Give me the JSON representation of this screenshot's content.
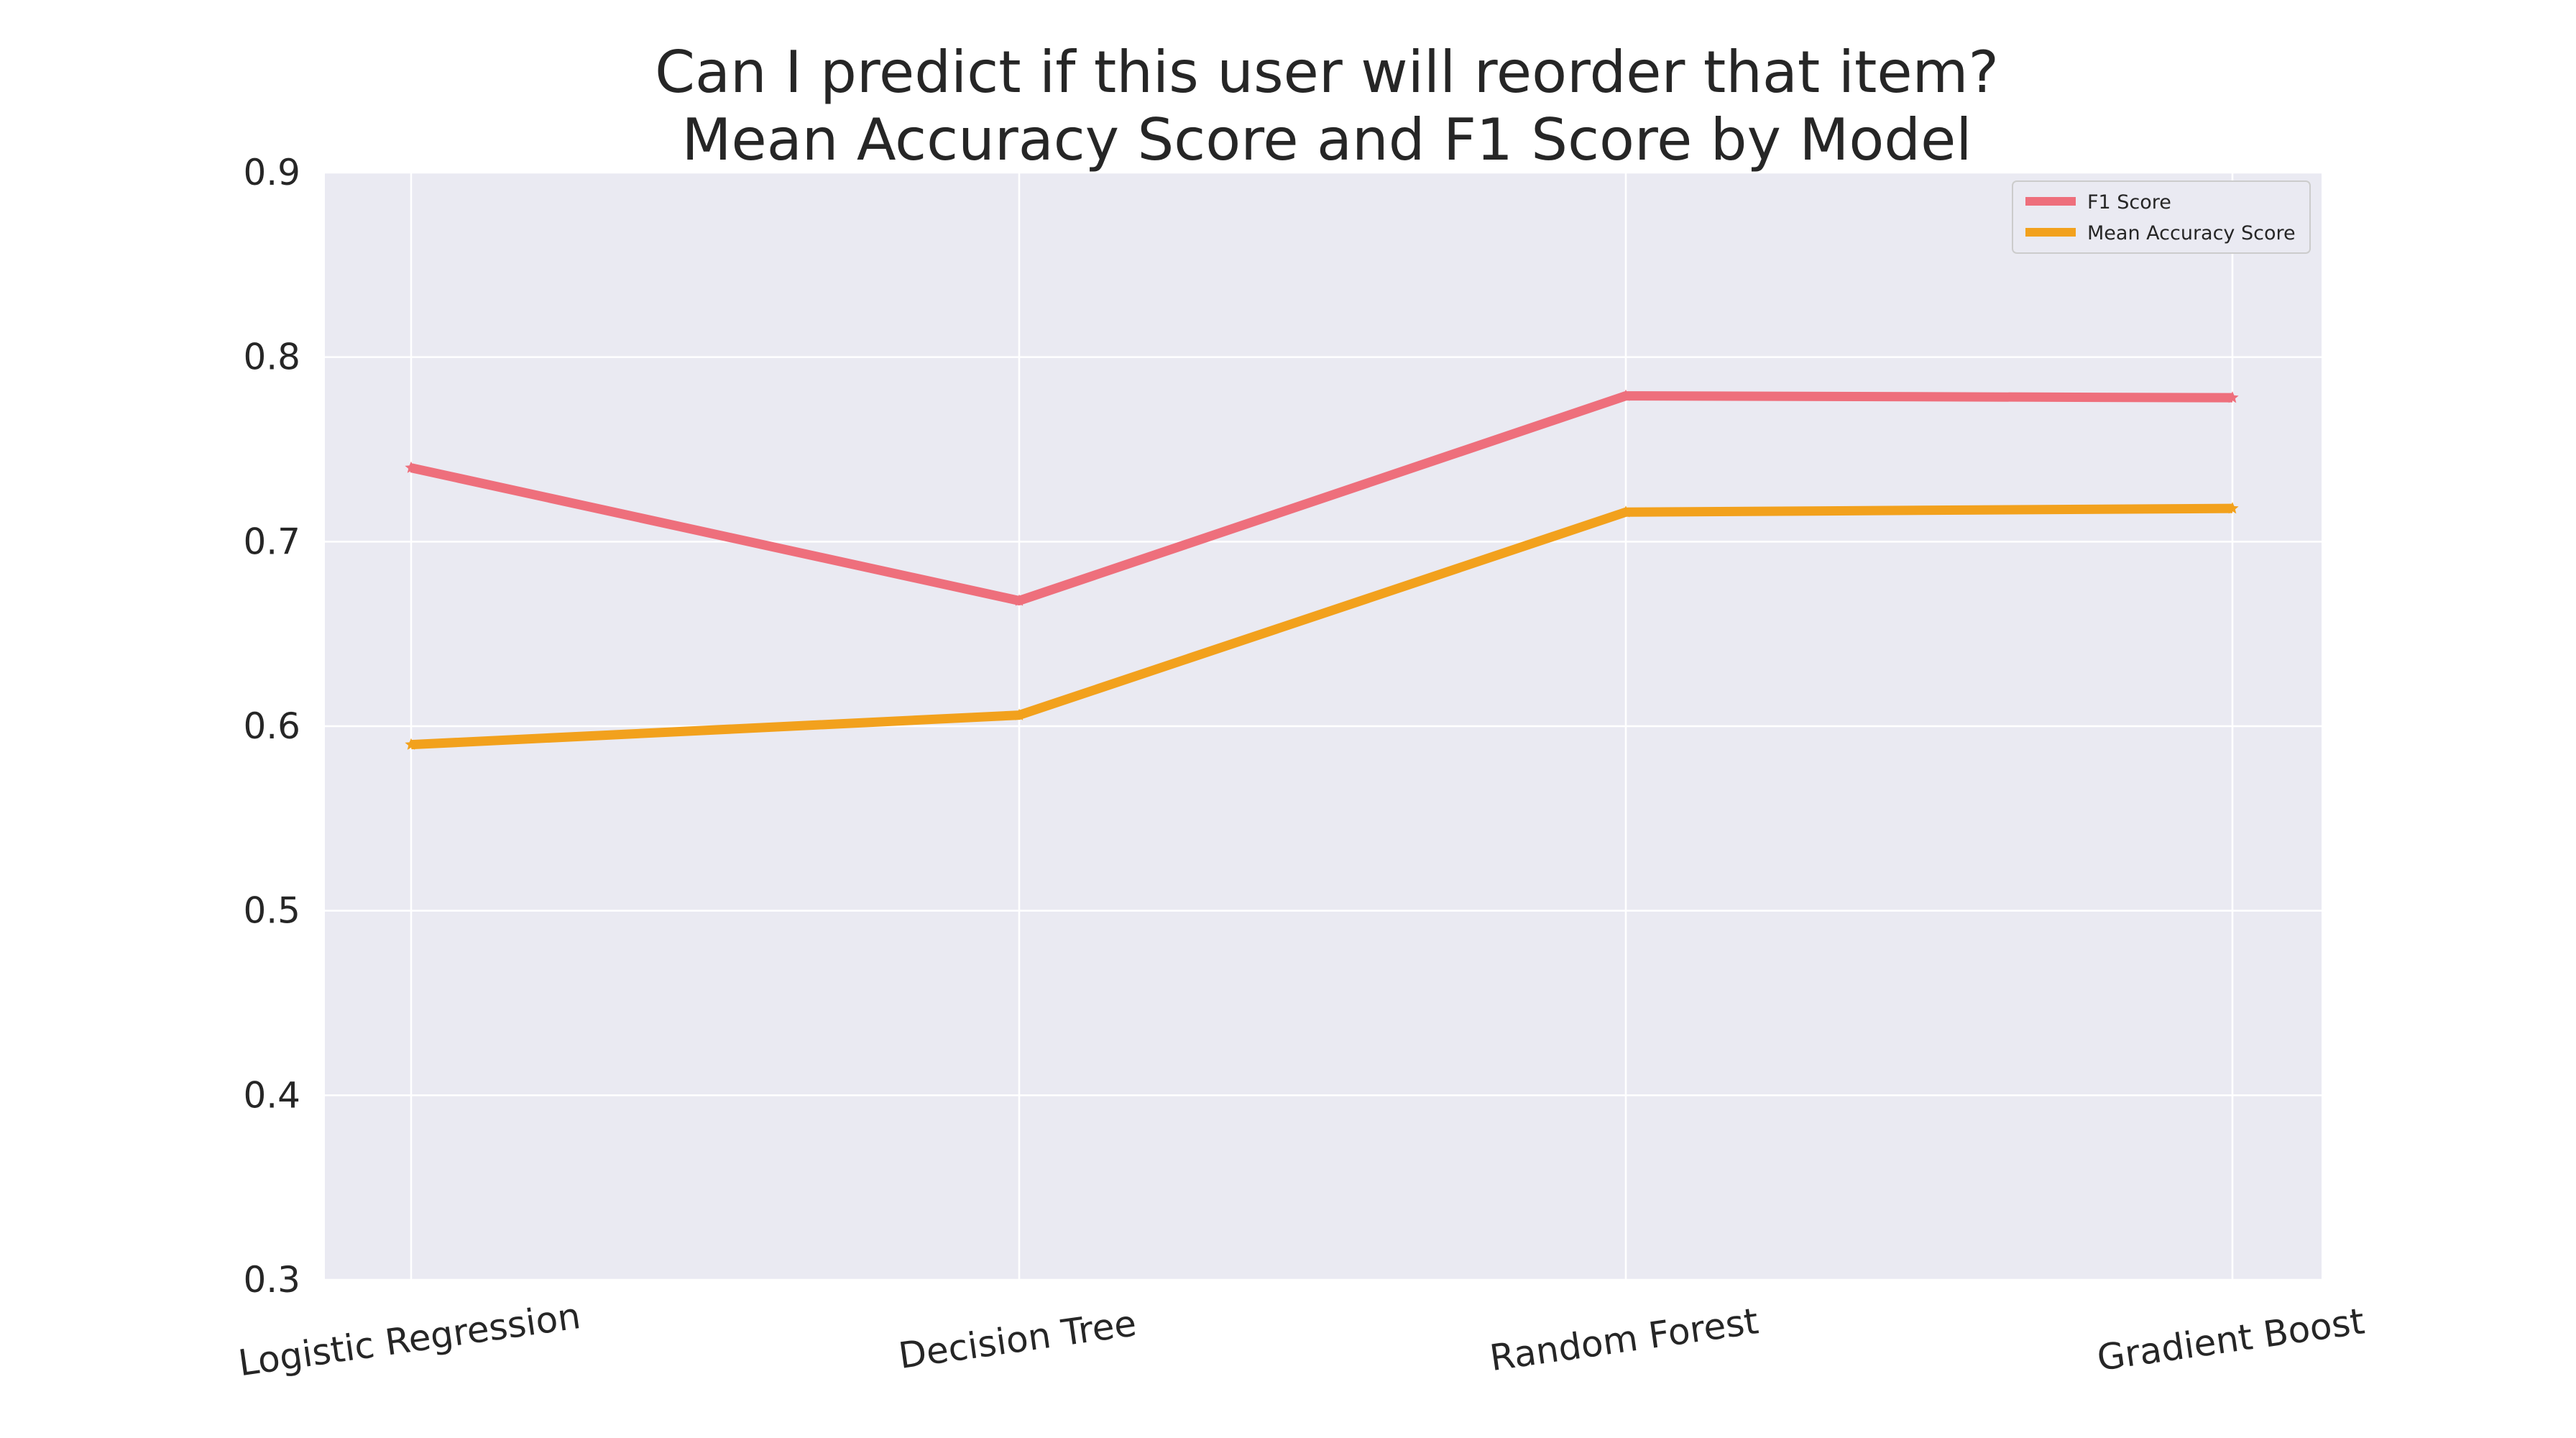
{
  "chart_data": {
    "type": "line",
    "title": "Can I predict if this user will reorder that item?",
    "subtitle": "Mean Accuracy Score and F1 Score by Model",
    "xlabel": "",
    "ylabel": "",
    "categories": [
      "Logistic Regression",
      "Decision Tree",
      "Random Forest",
      "Gradient Boost"
    ],
    "ylim": [
      0.3,
      0.9
    ],
    "yticks": [
      "0.3",
      "0.4",
      "0.5",
      "0.6",
      "0.7",
      "0.8",
      "0.9"
    ],
    "grid": true,
    "legend_position": "top-right",
    "series": [
      {
        "name": "F1 Score",
        "color": "#ee6f7c",
        "values": [
          0.74,
          0.668,
          0.779,
          0.778
        ]
      },
      {
        "name": "Mean Accuracy Score",
        "color": "#f2a11d",
        "values": [
          0.59,
          0.606,
          0.716,
          0.718
        ]
      }
    ]
  }
}
